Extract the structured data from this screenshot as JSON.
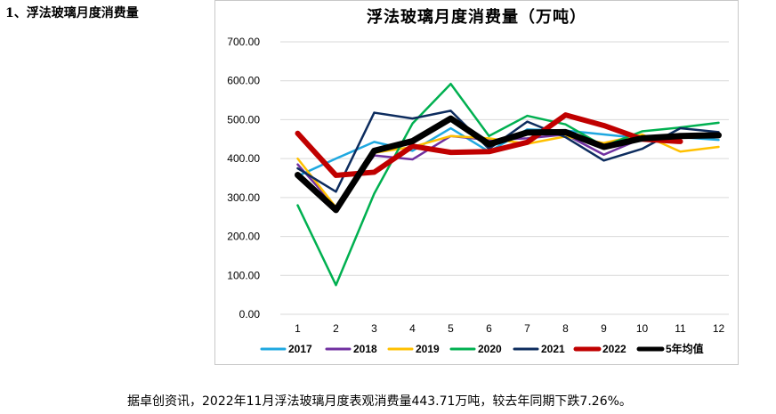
{
  "section": {
    "title": "1、浮法玻璃月度消费量"
  },
  "caption": "据卓创资讯，2022年11月浮法玻璃月度表观消费量443.71万吨，较去年同期下跌7.26%。",
  "chart_data": {
    "type": "line",
    "title": "浮法玻璃月度消费量（万吨）",
    "categories": [
      "1",
      "2",
      "3",
      "4",
      "5",
      "6",
      "7",
      "8",
      "9",
      "10",
      "11",
      "12"
    ],
    "ylim": [
      0,
      700
    ],
    "yticks": [
      "0.00",
      "100.00",
      "200.00",
      "300.00",
      "400.00",
      "500.00",
      "600.00",
      "700.00"
    ],
    "grid": true,
    "legend_position": "bottom",
    "series": [
      {
        "name": "2017",
        "color": "#1fa8e0",
        "width": 2.5,
        "values": [
          355,
          400,
          443,
          420,
          478,
          418,
          475,
          472,
          462,
          452,
          455,
          448
        ]
      },
      {
        "name": "2018",
        "color": "#7030a0",
        "width": 2.5,
        "values": [
          385,
          275,
          408,
          398,
          458,
          448,
          452,
          462,
          410,
          452,
          460,
          462
        ]
      },
      {
        "name": "2019",
        "color": "#ffc000",
        "width": 2.5,
        "values": [
          400,
          275,
          415,
          430,
          458,
          452,
          438,
          457,
          440,
          462,
          418,
          430
        ]
      },
      {
        "name": "2020",
        "color": "#00b050",
        "width": 2.5,
        "values": [
          280,
          75,
          310,
          490,
          592,
          458,
          510,
          488,
          432,
          470,
          480,
          492
        ]
      },
      {
        "name": "2021",
        "color": "#0d2c5e",
        "width": 2.5,
        "values": [
          375,
          315,
          518,
          503,
          523,
          425,
          495,
          455,
          395,
          425,
          478,
          468
        ]
      },
      {
        "name": "2022",
        "color": "#c00000",
        "width": 6,
        "values": [
          465,
          357,
          365,
          432,
          416,
          418,
          442,
          512,
          485,
          450,
          444,
          null
        ]
      },
      {
        "name": "5年均值",
        "color": "#000000",
        "width": 7,
        "values": [
          358,
          268,
          420,
          445,
          503,
          437,
          467,
          468,
          430,
          452,
          458,
          460
        ]
      }
    ]
  }
}
